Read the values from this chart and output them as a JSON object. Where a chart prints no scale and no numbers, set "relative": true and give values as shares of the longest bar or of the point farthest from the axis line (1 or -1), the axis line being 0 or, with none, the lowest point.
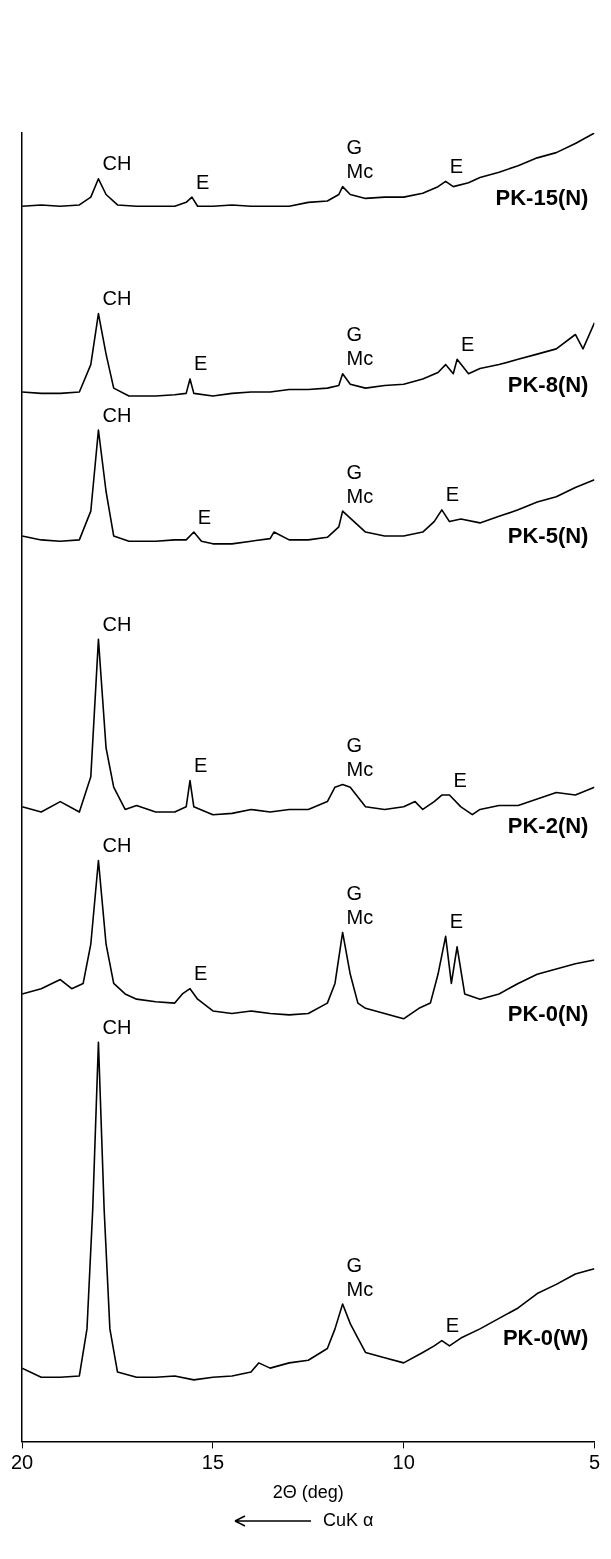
{
  "chart_data": {
    "type": "line",
    "relative": true,
    "xlabel": "2Θ (deg)",
    "xlim": [
      20,
      5
    ],
    "xticks": [
      20,
      15,
      10,
      5
    ],
    "legend": false,
    "marker": "none",
    "line_style": "solid",
    "series": [
      {
        "name": "PK-15(N)",
        "color": "#000000",
        "x": [
          20,
          19.5,
          19,
          18.5,
          18.2,
          18,
          17.8,
          17.5,
          17,
          16.5,
          16,
          15.7,
          15.55,
          15.4,
          15,
          14.5,
          14,
          13.5,
          13,
          12.5,
          12,
          11.7,
          11.6,
          11.4,
          11,
          10.5,
          10,
          9.5,
          9.1,
          8.9,
          8.7,
          8.3,
          8,
          7.5,
          7,
          6.5,
          6,
          5.5,
          5
        ],
        "values": [
          0.944,
          0.945,
          0.944,
          0.945,
          0.951,
          0.965,
          0.953,
          0.945,
          0.944,
          0.944,
          0.944,
          0.947,
          0.951,
          0.944,
          0.944,
          0.945,
          0.944,
          0.944,
          0.944,
          0.947,
          0.948,
          0.953,
          0.959,
          0.953,
          0.95,
          0.951,
          0.951,
          0.954,
          0.959,
          0.963,
          0.959,
          0.962,
          0.966,
          0.97,
          0.975,
          0.981,
          0.985,
          0.992,
          1
        ]
      },
      {
        "name": "PK-8(N)",
        "color": "#000000",
        "x": [
          20,
          19.5,
          19,
          18.5,
          18.2,
          18,
          17.8,
          17.6,
          17.2,
          16.5,
          16,
          15.7,
          15.6,
          15.5,
          15,
          14.5,
          14,
          13.5,
          13,
          12.5,
          12,
          11.7,
          11.6,
          11.4,
          11,
          10.5,
          10,
          9.5,
          9.1,
          8.9,
          8.7,
          8.6,
          8.3,
          8,
          7.5,
          7,
          6.5,
          6,
          5.5,
          5.3,
          5
        ],
        "values": [
          0.802,
          0.801,
          0.801,
          0.802,
          0.823,
          0.862,
          0.831,
          0.805,
          0.799,
          0.799,
          0.8,
          0.801,
          0.812,
          0.801,
          0.799,
          0.801,
          0.802,
          0.802,
          0.804,
          0.804,
          0.805,
          0.807,
          0.816,
          0.808,
          0.805,
          0.807,
          0.808,
          0.812,
          0.817,
          0.823,
          0.816,
          0.827,
          0.816,
          0.82,
          0.823,
          0.827,
          0.831,
          0.835,
          0.846,
          0.835,
          0.855
        ]
      },
      {
        "name": "PK-5(N)",
        "color": "#000000",
        "x": [
          20,
          19.5,
          19,
          18.5,
          18.2,
          18,
          17.8,
          17.6,
          17.2,
          16.5,
          16,
          15.7,
          15.5,
          15.3,
          15,
          14.5,
          14,
          13.5,
          13.4,
          13,
          12.5,
          12,
          11.7,
          11.6,
          11.3,
          11,
          10.5,
          10,
          9.5,
          9.2,
          9,
          8.8,
          8.5,
          8,
          7.5,
          7,
          6.5,
          6,
          5.5,
          5
        ],
        "values": [
          0.692,
          0.689,
          0.688,
          0.689,
          0.711,
          0.773,
          0.726,
          0.692,
          0.688,
          0.688,
          0.689,
          0.689,
          0.695,
          0.688,
          0.686,
          0.686,
          0.688,
          0.69,
          0.695,
          0.689,
          0.689,
          0.691,
          0.699,
          0.711,
          0.703,
          0.695,
          0.692,
          0.692,
          0.695,
          0.703,
          0.712,
          0.703,
          0.705,
          0.702,
          0.707,
          0.712,
          0.718,
          0.722,
          0.729,
          0.735
        ]
      },
      {
        "name": "PK-2(N)",
        "color": "#000000",
        "x": [
          20,
          19.5,
          19,
          18.5,
          18.2,
          18,
          17.8,
          17.6,
          17.3,
          17,
          16.5,
          16,
          15.7,
          15.6,
          15.5,
          15,
          14.5,
          14,
          13.5,
          13,
          12.5,
          12,
          11.8,
          11.6,
          11.4,
          11,
          10.5,
          10,
          9.7,
          9.5,
          9.2,
          9,
          8.8,
          8.5,
          8.2,
          8,
          7.5,
          7,
          6.5,
          6,
          5.5,
          5
        ],
        "values": [
          0.485,
          0.481,
          0.489,
          0.481,
          0.508,
          0.613,
          0.53,
          0.5,
          0.483,
          0.486,
          0.481,
          0.481,
          0.485,
          0.505,
          0.485,
          0.479,
          0.48,
          0.483,
          0.481,
          0.483,
          0.483,
          0.489,
          0.5,
          0.502,
          0.5,
          0.485,
          0.483,
          0.485,
          0.489,
          0.483,
          0.489,
          0.494,
          0.494,
          0.485,
          0.479,
          0.483,
          0.486,
          0.486,
          0.491,
          0.496,
          0.494,
          0.5
        ]
      },
      {
        "name": "PK-0(N)",
        "color": "#000000",
        "x": [
          20,
          19.5,
          19,
          18.7,
          18.4,
          18.2,
          18,
          17.8,
          17.6,
          17.3,
          17,
          16.5,
          16,
          15.8,
          15.6,
          15.4,
          15,
          14.5,
          14,
          13.5,
          13,
          12.5,
          12,
          11.8,
          11.6,
          11.4,
          11.2,
          11,
          10.5,
          10,
          9.6,
          9.3,
          9.1,
          8.9,
          8.75,
          8.6,
          8.4,
          8,
          7.5,
          7,
          6.5,
          6,
          5.5,
          5
        ],
        "values": [
          0.342,
          0.346,
          0.353,
          0.346,
          0.35,
          0.38,
          0.444,
          0.38,
          0.35,
          0.342,
          0.338,
          0.336,
          0.335,
          0.342,
          0.346,
          0.338,
          0.329,
          0.327,
          0.329,
          0.327,
          0.326,
          0.327,
          0.335,
          0.35,
          0.389,
          0.357,
          0.335,
          0.331,
          0.327,
          0.323,
          0.331,
          0.335,
          0.357,
          0.386,
          0.35,
          0.378,
          0.342,
          0.338,
          0.342,
          0.35,
          0.357,
          0.361,
          0.365,
          0.368
        ]
      },
      {
        "name": "PK-0(W)",
        "color": "#000000",
        "x": [
          20,
          19.5,
          19,
          18.5,
          18.3,
          18.15,
          18,
          17.85,
          17.7,
          17.5,
          17,
          16.5,
          16,
          15.5,
          15,
          14.5,
          14,
          13.8,
          13.5,
          13,
          12.5,
          12,
          11.8,
          11.6,
          11.4,
          11.2,
          11,
          10.5,
          10,
          9.5,
          9.2,
          9,
          8.8,
          8.5,
          8,
          7.5,
          7,
          6.5,
          6,
          5.5,
          5
        ],
        "values": [
          0.056,
          0.049,
          0.049,
          0.05,
          0.086,
          0.177,
          0.305,
          0.177,
          0.086,
          0.053,
          0.049,
          0.049,
          0.05,
          0.047,
          0.049,
          0.05,
          0.053,
          0.06,
          0.056,
          0.06,
          0.062,
          0.071,
          0.086,
          0.105,
          0.09,
          0.079,
          0.068,
          0.064,
          0.06,
          0.068,
          0.073,
          0.077,
          0.073,
          0.079,
          0.086,
          0.094,
          0.102,
          0.113,
          0.12,
          0.128,
          0.132
        ]
      }
    ],
    "annotations": [
      {
        "text": "CH",
        "x": 18,
        "y": 0.965
      },
      {
        "text": "E",
        "x": 15.55,
        "y": 0.951
      },
      {
        "text": "Mc",
        "x": 11.6,
        "y": 0.959
      },
      {
        "text": "G",
        "x": 11.6,
        "y": 0.959
      },
      {
        "text": "E",
        "x": 8.9,
        "y": 0.963
      },
      {
        "text": "CH",
        "x": 18,
        "y": 0.862
      },
      {
        "text": "E",
        "x": 15.6,
        "y": 0.812
      },
      {
        "text": "Mc",
        "x": 11.6,
        "y": 0.816
      },
      {
        "text": "G",
        "x": 11.6,
        "y": 0.816
      },
      {
        "text": "E",
        "x": 8.6,
        "y": 0.827
      },
      {
        "text": "CH",
        "x": 18,
        "y": 0.773
      },
      {
        "text": "E",
        "x": 15.5,
        "y": 0.695
      },
      {
        "text": "Mc",
        "x": 11.6,
        "y": 0.711
      },
      {
        "text": "G",
        "x": 11.6,
        "y": 0.711
      },
      {
        "text": "E",
        "x": 9,
        "y": 0.712
      },
      {
        "text": "CH",
        "x": 18,
        "y": 0.613
      },
      {
        "text": "E",
        "x": 15.6,
        "y": 0.505
      },
      {
        "text": "Mc",
        "x": 11.6,
        "y": 0.502
      },
      {
        "text": "G",
        "x": 11.6,
        "y": 0.502
      },
      {
        "text": "E",
        "x": 8.8,
        "y": 0.494
      },
      {
        "text": "CH",
        "x": 18,
        "y": 0.444
      },
      {
        "text": "E",
        "x": 15.6,
        "y": 0.346
      },
      {
        "text": "Mc",
        "x": 11.6,
        "y": 0.389
      },
      {
        "text": "G",
        "x": 11.6,
        "y": 0.389
      },
      {
        "text": "E",
        "x": 8.9,
        "y": 0.386
      },
      {
        "text": "CH",
        "x": 18,
        "y": 0.305
      },
      {
        "text": "Mc",
        "x": 11.6,
        "y": 0.105
      },
      {
        "text": "G",
        "x": 11.6,
        "y": 0.105
      },
      {
        "text": "E",
        "x": 9,
        "y": 0.077
      },
      "CuK α"
    ]
  }
}
